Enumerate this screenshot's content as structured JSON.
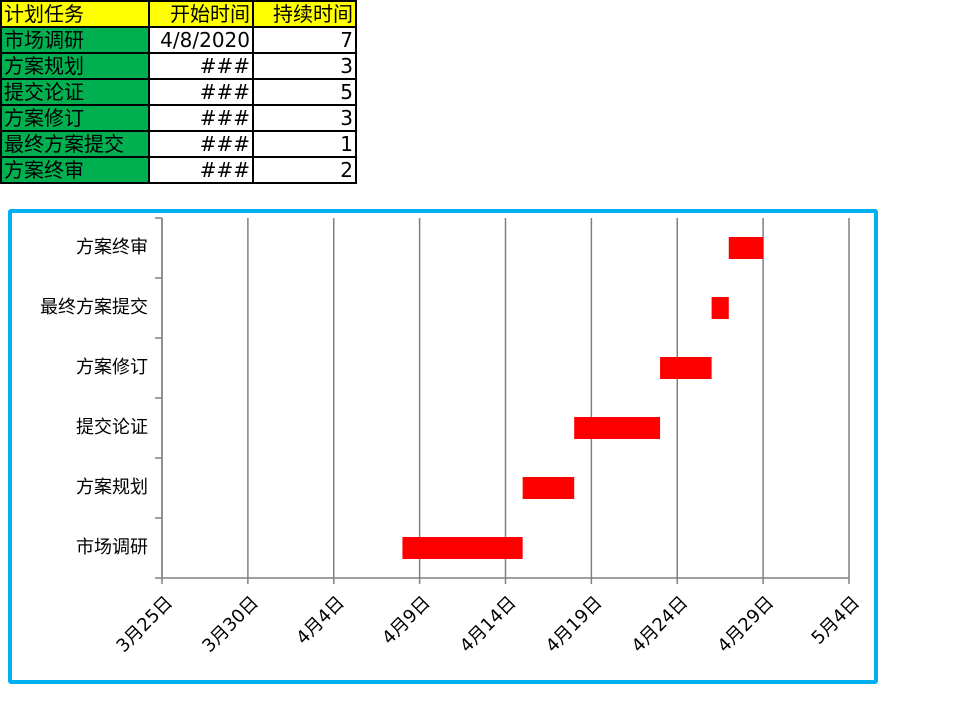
{
  "table": {
    "header": [
      "计划任务",
      "开始时间",
      "持续时间"
    ],
    "rows": [
      [
        "市场调研",
        "4/8/2020",
        "7"
      ],
      [
        "方案规划",
        "###",
        "3"
      ],
      [
        "提交论证",
        "###",
        "5"
      ],
      [
        "方案修订",
        "###",
        "3"
      ],
      [
        "最终方案提交",
        "###",
        "1"
      ],
      [
        "方案终审",
        "###",
        "2"
      ]
    ]
  },
  "chart_data": {
    "type": "gantt",
    "categories": [
      "市场调研",
      "方案规划",
      "提交论证",
      "方案修订",
      "最终方案提交",
      "方案终审"
    ],
    "starts": [
      43929,
      43936,
      43939,
      43944,
      43947,
      43948
    ],
    "values": [
      7,
      3,
      5,
      3,
      1,
      2
    ],
    "color": "#ff0000",
    "xlim": [
      43915,
      43955
    ],
    "xticks": [
      {
        "value": 43915,
        "label": "3月25日"
      },
      {
        "value": 43920,
        "label": "3月30日"
      },
      {
        "value": 43925,
        "label": "4月4日"
      },
      {
        "value": 43930,
        "label": "4月9日"
      },
      {
        "value": 43935,
        "label": "4月14日"
      },
      {
        "value": 43940,
        "label": "4月19日"
      },
      {
        "value": 43945,
        "label": "4月24日"
      },
      {
        "value": 43950,
        "label": "4月29日"
      },
      {
        "value": 43955,
        "label": "5月4日"
      }
    ],
    "grid": true
  }
}
